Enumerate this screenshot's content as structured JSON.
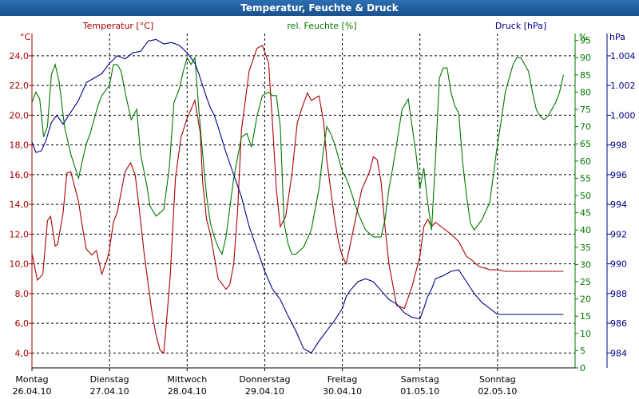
{
  "window": {
    "title": "Temperatur, Feuchte & Druck"
  },
  "colors": {
    "temperature": "#aa0000",
    "humidity": "#007700",
    "pressure": "#000088",
    "grid": "#000000",
    "title_bar": "#1f5c9e"
  },
  "chart_data": {
    "type": "line",
    "title": "Temperatur, Feuchte & Druck",
    "xlim": [
      0,
      7
    ],
    "x_tick_positions": [
      0,
      1,
      2,
      3,
      4,
      5,
      6
    ],
    "x_tick_labels": [
      [
        "Montag",
        "26.04.10"
      ],
      [
        "Dienstag",
        "27.04.10"
      ],
      [
        "Mittwoch",
        "28.04.10"
      ],
      [
        "Donnerstag",
        "29.04.10"
      ],
      [
        "Freitag",
        "30.04.10"
      ],
      [
        "Samstag",
        "01.05.10"
      ],
      [
        "Sonntag",
        "02.05.10"
      ]
    ],
    "grid": true,
    "axes": {
      "temperature": {
        "label": "Temperatur [°C]",
        "unit": "°C",
        "side": "left",
        "ticks": [
          "4,0",
          "6,0",
          "8,0",
          "10,0",
          "12,0",
          "14,0",
          "16,0",
          "18,0",
          "20,0",
          "22,0",
          "24,0"
        ],
        "tick_values": [
          4,
          6,
          8,
          10,
          12,
          14,
          16,
          18,
          20,
          22,
          24
        ],
        "range": [
          3,
          25.5
        ]
      },
      "humidity": {
        "label": "rel. Feuchte [%]",
        "unit": "%",
        "side": "right",
        "ticks": [
          "0",
          "5",
          "10",
          "15",
          "20",
          "25",
          "30",
          "35",
          "40",
          "45",
          "50",
          "55",
          "60",
          "65",
          "70",
          "75",
          "80",
          "85",
          "90",
          "95"
        ],
        "tick_values": [
          0,
          5,
          10,
          15,
          20,
          25,
          30,
          35,
          40,
          45,
          50,
          55,
          60,
          65,
          70,
          75,
          80,
          85,
          90,
          95
        ],
        "range": [
          0,
          97
        ]
      },
      "pressure": {
        "label": "Druck [hPa]",
        "unit": "hPa",
        "side": "right",
        "ticks": [
          "984",
          "986",
          "988",
          "990",
          "992",
          "994",
          "996",
          "998",
          "1.000",
          "1.002",
          "1.004"
        ],
        "tick_values": [
          984,
          986,
          988,
          990,
          992,
          994,
          996,
          998,
          1000,
          1002,
          1004
        ],
        "range": [
          983,
          1005.5
        ]
      }
    },
    "series": [
      {
        "name": "Temperatur [°C]",
        "axis": "temperature",
        "color": "#aa0000",
        "x": [
          0,
          0.07,
          0.14,
          0.2,
          0.24,
          0.3,
          0.33,
          0.4,
          0.45,
          0.5,
          0.6,
          0.65,
          0.7,
          0.77,
          0.83,
          0.87,
          0.9,
          0.97,
          1.0,
          1.05,
          1.1,
          1.2,
          1.27,
          1.33,
          1.38,
          1.45,
          1.55,
          1.6,
          1.65,
          1.7,
          1.78,
          1.85,
          1.92,
          2.0,
          2.1,
          2.17,
          2.2,
          2.25,
          2.3,
          2.4,
          2.5,
          2.55,
          2.6,
          2.65,
          2.7,
          2.8,
          2.9,
          2.97,
          3.05,
          3.1,
          3.15,
          3.2,
          3.27,
          3.35,
          3.42,
          3.48,
          3.55,
          3.6,
          3.7,
          3.76,
          3.8,
          3.85,
          3.9,
          3.95,
          4.0,
          4.05,
          4.15,
          4.25,
          4.35,
          4.4,
          4.45,
          4.5,
          4.55,
          4.6,
          4.7,
          4.8,
          4.9,
          5.0,
          5.05,
          5.1,
          5.15,
          5.2,
          5.3,
          5.4,
          5.5,
          5.6,
          5.68,
          5.72,
          5.77,
          5.85,
          5.9,
          6.0,
          6.1,
          6.17,
          6.25,
          6.3,
          6.35,
          6.4,
          6.45,
          6.5,
          6.55,
          6.6,
          6.65,
          6.7,
          6.75,
          6.8,
          6.85
        ],
        "values": [
          10.7,
          8.9,
          9.3,
          12.9,
          13.2,
          11.2,
          11.3,
          13.4,
          16.1,
          16.2,
          14.2,
          12.5,
          11.0,
          10.6,
          10.9,
          10.0,
          9.3,
          10.3,
          11.0,
          12.8,
          13.5,
          16.2,
          16.8,
          16.0,
          13.8,
          10.5,
          6.6,
          5.2,
          4.2,
          4.0,
          9.0,
          15.8,
          18.5,
          19.8,
          21.0,
          18.8,
          15.5,
          13.0,
          12.0,
          9.0,
          8.3,
          8.6,
          10.0,
          13.5,
          19.0,
          23.0,
          24.5,
          24.7,
          23.5,
          19.5,
          15.0,
          12.5,
          13.2,
          16.0,
          19.5,
          20.5,
          21.5,
          21.0,
          21.3,
          19.5,
          17.0,
          15.0,
          13.0,
          11.5,
          10.5,
          10.0,
          12.5,
          15.0,
          16.2,
          17.2,
          17.0,
          15.5,
          12.5,
          10.0,
          7.2,
          7.0,
          8.5,
          10.5,
          12.5,
          13.0,
          12.5,
          12.8,
          12.4,
          12.0,
          11.5,
          10.5,
          10.2,
          10.0,
          9.8,
          9.7,
          9.6,
          9.6,
          9.5,
          9.5,
          9.5,
          9.5,
          9.5,
          9.5,
          9.5,
          9.5,
          9.5,
          9.5,
          9.5,
          9.5,
          9.5,
          9.5,
          9.5
        ]
      },
      {
        "name": "rel. Feuchte [%]",
        "axis": "humidity",
        "color": "#007700",
        "x": [
          0,
          0.05,
          0.1,
          0.15,
          0.2,
          0.25,
          0.3,
          0.35,
          0.42,
          0.5,
          0.6,
          0.65,
          0.7,
          0.75,
          0.8,
          0.85,
          0.9,
          1.0,
          1.05,
          1.1,
          1.15,
          1.2,
          1.28,
          1.35,
          1.4,
          1.48,
          1.52,
          1.6,
          1.7,
          1.77,
          1.83,
          1.9,
          1.95,
          2.0,
          2.05,
          2.1,
          2.15,
          2.2,
          2.25,
          2.3,
          2.35,
          2.4,
          2.45,
          2.5,
          2.6,
          2.7,
          2.77,
          2.83,
          2.9,
          2.97,
          3.05,
          3.1,
          3.15,
          3.2,
          3.25,
          3.3,
          3.35,
          3.4,
          3.5,
          3.6,
          3.7,
          3.75,
          3.8,
          3.85,
          3.9,
          4.0,
          4.05,
          4.1,
          4.2,
          4.3,
          4.4,
          4.5,
          4.55,
          4.6,
          4.65,
          4.7,
          4.77,
          4.85,
          4.95,
          5.0,
          5.05,
          5.1,
          5.15,
          5.2,
          5.25,
          5.3,
          5.35,
          5.4,
          5.45,
          5.5,
          5.55,
          5.6,
          5.65,
          5.7,
          5.8,
          5.9,
          6.0,
          6.05,
          6.1,
          6.15,
          6.2,
          6.25,
          6.3,
          6.35,
          6.4,
          6.45,
          6.5,
          6.55,
          6.6,
          6.65,
          6.7,
          6.75,
          6.8,
          6.85
        ],
        "values": [
          77,
          80,
          78,
          67,
          70,
          85,
          88,
          83,
          70,
          62,
          55,
          60,
          65,
          68,
          72,
          76,
          79,
          82,
          88,
          88,
          86,
          80,
          72,
          75,
          62,
          53,
          47,
          44,
          46,
          58,
          77,
          81,
          86,
          90,
          88,
          90,
          75,
          62,
          50,
          42,
          38,
          35,
          33,
          38,
          55,
          67,
          68,
          64,
          73,
          79,
          80,
          79,
          79,
          70,
          42,
          36,
          33,
          33,
          35,
          40,
          52,
          62,
          70,
          68,
          65,
          57,
          55,
          52,
          45,
          40,
          38,
          38,
          43,
          52,
          58,
          65,
          75,
          78,
          62,
          52,
          58,
          48,
          40,
          60,
          84,
          87,
          87,
          80,
          76,
          74,
          60,
          50,
          42,
          40,
          43,
          48,
          65,
          72,
          80,
          84,
          88,
          90,
          90,
          88,
          86,
          80,
          75,
          73,
          72,
          73,
          75,
          77,
          80,
          85
        ]
      },
      {
        "name": "Druck [hPa]",
        "axis": "pressure",
        "color": "#000088",
        "x": [
          0,
          0.05,
          0.12,
          0.18,
          0.25,
          0.32,
          0.4,
          0.5,
          0.6,
          0.7,
          0.8,
          0.9,
          1.0,
          1.1,
          1.2,
          1.3,
          1.4,
          1.5,
          1.6,
          1.7,
          1.8,
          1.9,
          2.0,
          2.1,
          2.15,
          2.2,
          2.25,
          2.3,
          2.35,
          2.4,
          2.5,
          2.6,
          2.7,
          2.75,
          2.8,
          2.9,
          3.0,
          3.1,
          3.2,
          3.3,
          3.4,
          3.5,
          3.6,
          3.7,
          3.8,
          3.9,
          4.0,
          4.05,
          4.1,
          4.15,
          4.2,
          4.3,
          4.4,
          4.5,
          4.6,
          4.7,
          4.8,
          4.9,
          5.0,
          5.05,
          5.1,
          5.15,
          5.2,
          5.3,
          5.4,
          5.5,
          5.6,
          5.7,
          5.8,
          5.85,
          5.9,
          5.95,
          6.0,
          6.1,
          6.2,
          6.3,
          6.4,
          6.5,
          6.6,
          6.7,
          6.75,
          6.8,
          6.85
        ],
        "values": [
          998.2,
          997.5,
          997.6,
          998.3,
          999.5,
          1000.0,
          999.4,
          1000.2,
          1001.0,
          1002.2,
          1002.5,
          1002.8,
          1003.5,
          1004.0,
          1003.8,
          1004.2,
          1004.3,
          1005.0,
          1005.1,
          1004.8,
          1004.9,
          1004.7,
          1004.2,
          1003.5,
          1002.8,
          1002.0,
          1001.2,
          1000.5,
          1000.0,
          999.2,
          997.5,
          996.0,
          994.5,
          993.5,
          992.5,
          991.0,
          989.5,
          988.3,
          987.6,
          986.5,
          985.5,
          984.3,
          984.0,
          984.8,
          985.5,
          986.2,
          987.0,
          987.8,
          988.2,
          988.5,
          988.8,
          989.0,
          988.8,
          988.2,
          987.6,
          987.3,
          986.7,
          986.4,
          986.3,
          987.0,
          987.8,
          988.3,
          989.0,
          989.2,
          989.5,
          989.6,
          988.8,
          988.0,
          987.4,
          987.2,
          987.0,
          986.8,
          986.6,
          986.6,
          986.6,
          986.6,
          986.6,
          986.6,
          986.6,
          986.6,
          986.6,
          986.6,
          986.6
        ]
      }
    ]
  }
}
